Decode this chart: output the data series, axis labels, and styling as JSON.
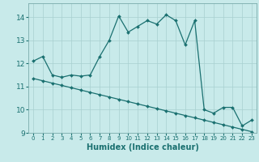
{
  "xlabel": "Humidex (Indice chaleur)",
  "ylabel": "",
  "background_color": "#c8eaea",
  "line_color": "#1a7070",
  "xlim": [
    -0.5,
    23.5
  ],
  "ylim": [
    9,
    14.6
  ],
  "yticks": [
    9,
    10,
    11,
    12,
    13,
    14
  ],
  "xticks": [
    0,
    1,
    2,
    3,
    4,
    5,
    6,
    7,
    8,
    9,
    10,
    11,
    12,
    13,
    14,
    15,
    16,
    17,
    18,
    19,
    20,
    21,
    22,
    23
  ],
  "series1_x": [
    0,
    1,
    2,
    3,
    4,
    5,
    6,
    7,
    8,
    9,
    10,
    11,
    12,
    13,
    14,
    15,
    16,
    17,
    18,
    19,
    20,
    21,
    22,
    23
  ],
  "series1_y": [
    12.1,
    12.3,
    11.5,
    11.4,
    11.5,
    11.45,
    11.5,
    12.3,
    13.0,
    14.05,
    13.35,
    13.6,
    13.85,
    13.7,
    14.1,
    13.85,
    12.8,
    13.85,
    10.0,
    9.85,
    10.1,
    10.1,
    9.3,
    9.55
  ],
  "series2_x": [
    0,
    1,
    2,
    3,
    4,
    5,
    6,
    7,
    8,
    9,
    10,
    11,
    12,
    13,
    14,
    15,
    16,
    17,
    18,
    19,
    20,
    21,
    22,
    23
  ],
  "series2_y": [
    11.35,
    11.25,
    11.15,
    11.05,
    10.95,
    10.85,
    10.75,
    10.65,
    10.55,
    10.45,
    10.35,
    10.25,
    10.15,
    10.05,
    9.95,
    9.85,
    9.75,
    9.65,
    9.55,
    9.45,
    9.35,
    9.25,
    9.15,
    9.05
  ],
  "ytick_fontsize": 6.5,
  "xtick_fontsize": 5.0,
  "xlabel_fontsize": 7.0
}
